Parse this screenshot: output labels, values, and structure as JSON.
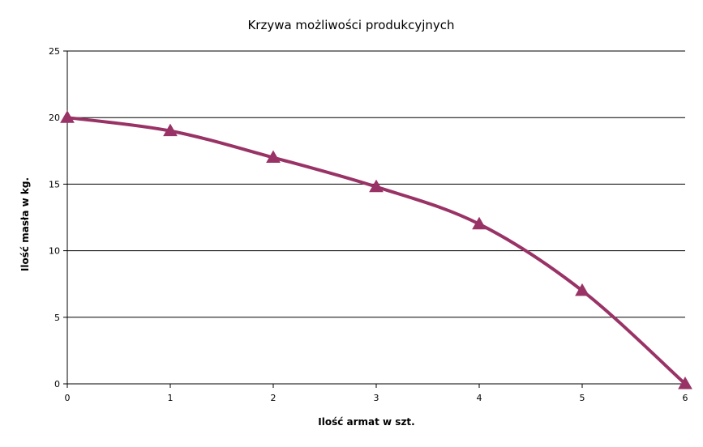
{
  "chart_data": {
    "type": "line",
    "title": "Krzywa możliwości produkcyjnych",
    "xlabel": "Ilość armat w szt.",
    "ylabel": "Ilość masła w kg.",
    "xlim": [
      0,
      6
    ],
    "ylim": [
      0,
      25
    ],
    "x_ticks": [
      "0",
      "1",
      "2",
      "3",
      "4",
      "5",
      "6"
    ],
    "y_ticks": [
      "0",
      "5",
      "10",
      "15",
      "20",
      "25"
    ],
    "grid": "horizontal",
    "legend": "none",
    "marker": "triangle",
    "smooth": true,
    "series": [
      {
        "x": [
          0,
          1,
          2,
          3,
          4,
          5,
          6
        ],
        "values": [
          20,
          19,
          17,
          14.8,
          12,
          7,
          0
        ]
      }
    ],
    "colors": {
      "series": "#993366",
      "grid": "#000000",
      "axis": "#000000"
    }
  }
}
